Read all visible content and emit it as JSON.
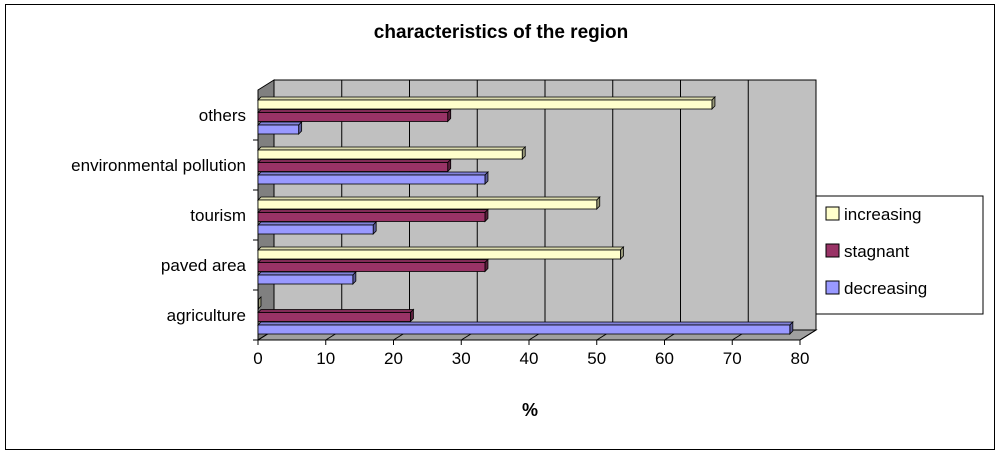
{
  "chart_data": {
    "type": "bar",
    "orientation": "horizontal",
    "title": "characteristics of the region",
    "xlabel": "%",
    "ylabel": "",
    "xlim": [
      0,
      80
    ],
    "x_ticks": [
      0,
      10,
      20,
      30,
      40,
      50,
      60,
      70,
      80
    ],
    "grid": true,
    "legend_position": "right",
    "categories": [
      "agriculture",
      "paved area",
      "tourism",
      "environmental pollution",
      "others"
    ],
    "series": [
      {
        "name": "increasing",
        "color": "#FFFFCC",
        "values": [
          0,
          53.5,
          50,
          39,
          67
        ]
      },
      {
        "name": "stagnant",
        "color": "#993366",
        "values": [
          22.5,
          33.5,
          33.5,
          28,
          28
        ]
      },
      {
        "name": "decreasing",
        "color": "#9999FF",
        "values": [
          78.5,
          14,
          17,
          33.5,
          6
        ]
      }
    ],
    "colors": {
      "plot_background": "#C0C0C0",
      "side_wall": "#808080",
      "gridline": "#000000"
    }
  }
}
